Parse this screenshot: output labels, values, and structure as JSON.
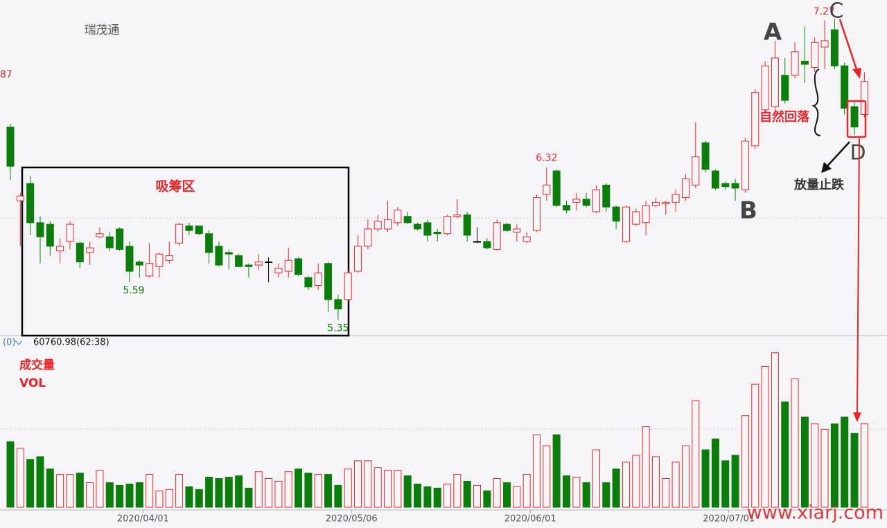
{
  "chart_data": [
    {
      "type": "candlestick",
      "title": "瑞茂通",
      "categories": [
        null,
        null,
        null,
        null,
        null,
        null,
        null,
        null,
        null,
        null,
        null,
        null,
        null,
        "2020/04/01",
        null,
        null,
        null,
        null,
        null,
        null,
        null,
        null,
        null,
        null,
        null,
        null,
        null,
        null,
        null,
        null,
        null,
        null,
        null,
        null,
        "2020/05/06",
        null,
        null,
        null,
        null,
        null,
        null,
        null,
        null,
        null,
        null,
        null,
        null,
        null,
        null,
        null,
        null,
        null,
        "2020/06/01",
        null,
        null,
        null,
        null,
        null,
        null,
        null,
        null,
        null,
        null,
        null,
        null,
        null,
        null,
        null,
        null,
        null,
        null,
        null,
        "2020/07/01",
        null,
        null,
        null,
        null,
        null,
        null,
        null,
        null,
        null,
        null,
        null,
        null,
        null,
        null
      ],
      "open": [
        6.58,
        6.11,
        6.22,
        5.97,
        5.96,
        5.79,
        5.85,
        5.84,
        5.78,
        5.88,
        5.88,
        5.93,
        5.82,
        5.72,
        5.63,
        5.69,
        5.73,
        5.84,
        5.95,
        5.95,
        5.9,
        5.82,
        5.78,
        5.76,
        5.7,
        5.7,
        5.72,
        5.65,
        5.66,
        5.74,
        5.62,
        5.57,
        5.71,
        5.48,
        5.48,
        5.66,
        5.82,
        5.93,
        5.93,
        5.97,
        6.01,
        5.96,
        5.97,
        5.91,
        5.9,
        6.01,
        6.02,
        5.85,
        5.85,
        5.8,
        5.96,
        5.91,
        5.85,
        5.92,
        6.15,
        6.3,
        6.08,
        6.1,
        6.12,
        6.04,
        6.21,
        6.07,
        5.85,
        5.96,
        5.97,
        6.08,
        6.09,
        6.1,
        6.13,
        6.21,
        6.48,
        6.3,
        6.22,
        6.22,
        6.18,
        6.46,
        6.69,
        6.71,
        6.91,
        6.91,
        7.0,
        6.96,
        7.09,
        7.2,
        6.97,
        6.71,
        6.66
      ],
      "high": [
        6.6,
        6.16,
        6.27,
        6.01,
        5.98,
        5.87,
        5.98,
        5.85,
        5.85,
        5.94,
        5.91,
        5.94,
        5.85,
        5.73,
        5.84,
        5.78,
        5.85,
        5.97,
        5.97,
        5.95,
        5.92,
        5.85,
        5.8,
        5.77,
        5.71,
        5.77,
        5.75,
        5.71,
        5.81,
        5.75,
        5.63,
        5.71,
        5.72,
        5.51,
        5.68,
        5.89,
        5.99,
        6.02,
        6.11,
        6.07,
        6.04,
        5.97,
        5.99,
        5.93,
        6.02,
        6.12,
        6.04,
        5.94,
        5.87,
        5.99,
        5.97,
        5.96,
        5.91,
        6.15,
        6.32,
        6.31,
        6.11,
        6.16,
        6.16,
        6.21,
        6.22,
        6.08,
        6.08,
        6.06,
        6.11,
        6.13,
        6.11,
        6.18,
        6.28,
        6.61,
        6.49,
        6.31,
        6.23,
        6.25,
        6.51,
        6.82,
        7.0,
        7.13,
        7.02,
        7.12,
        7.22,
        7.15,
        7.26,
        7.27,
        6.99,
        6.75,
        6.93
      ],
      "low": [
        6.24,
        5.82,
        5.89,
        5.71,
        5.76,
        5.71,
        5.8,
        5.68,
        5.7,
        5.87,
        5.79,
        5.79,
        5.59,
        5.62,
        5.62,
        5.62,
        5.71,
        5.82,
        5.89,
        5.89,
        5.71,
        5.69,
        5.67,
        5.69,
        5.62,
        5.67,
        5.59,
        5.62,
        5.62,
        5.63,
        5.54,
        5.54,
        5.4,
        5.35,
        5.47,
        5.65,
        5.8,
        5.91,
        5.91,
        5.95,
        5.96,
        5.92,
        5.85,
        5.85,
        5.89,
        6.0,
        5.85,
        5.84,
        5.8,
        5.79,
        5.91,
        5.85,
        5.84,
        5.91,
        6.11,
        6.07,
        6.03,
        6.05,
        6.07,
        6.03,
        6.04,
        5.93,
        5.84,
        5.95,
        5.89,
        6.07,
        6.02,
        6.04,
        6.11,
        6.19,
        6.29,
        6.18,
        6.18,
        6.11,
        6.16,
        6.44,
        6.66,
        6.69,
        6.73,
        6.89,
        6.86,
        6.93,
        6.95,
        6.95,
        6.66,
        6.53,
        6.64
      ],
      "close": [
        6.33,
        6.14,
        5.97,
        5.88,
        5.82,
        5.82,
        5.96,
        5.72,
        5.81,
        5.9,
        5.81,
        5.8,
        5.66,
        5.7,
        5.71,
        5.77,
        5.76,
        5.96,
        5.92,
        5.9,
        5.78,
        5.7,
        5.77,
        5.69,
        5.69,
        5.72,
        5.72,
        5.68,
        5.73,
        5.64,
        5.56,
        5.65,
        5.48,
        5.42,
        5.65,
        5.82,
        5.93,
        5.98,
        5.99,
        6.05,
        5.97,
        5.93,
        5.89,
        5.9,
        6.01,
        6.02,
        5.89,
        5.85,
        5.81,
        5.97,
        5.92,
        5.93,
        5.88,
        6.13,
        6.21,
        6.08,
        6.05,
        6.12,
        6.08,
        6.18,
        6.07,
        5.98,
        6.07,
        6.04,
        6.08,
        6.1,
        6.1,
        6.15,
        6.25,
        6.39,
        6.31,
        6.19,
        6.2,
        6.19,
        6.49,
        6.8,
        6.97,
        7.02,
        6.75,
        7.06,
        6.98,
        7.12,
        7.13,
        6.97,
        6.7,
        6.58,
        6.87
      ],
      "up_color": "#e8262a",
      "down_color": "#0a7d0a",
      "flat_color": "#000000",
      "ylim": [
        5.25,
        7.39
      ],
      "annotations": [
        "吸筹区",
        "自然回落",
        "放量止跌",
        "A",
        "B",
        "C",
        "D",
        "87"
      ]
    },
    {
      "type": "bar",
      "title": "成交量",
      "subtitle": "VOL",
      "indicator": "(0)",
      "header": "60760.98(62:38)",
      "values": [
        48000,
        43000,
        35000,
        37000,
        28000,
        24000,
        24000,
        25000,
        18000,
        27000,
        18000,
        16000,
        17000,
        18000,
        24000,
        12000,
        13000,
        24000,
        15000,
        13000,
        22000,
        21000,
        22000,
        23000,
        14000,
        26000,
        21000,
        19000,
        26000,
        28000,
        25000,
        24000,
        24000,
        16000,
        28000,
        34000,
        34000,
        29000,
        27000,
        27000,
        23000,
        17000,
        15000,
        14000,
        17000,
        24000,
        19000,
        16000,
        12000,
        21000,
        18000,
        15000,
        24000,
        53000,
        45000,
        53000,
        23000,
        22000,
        18000,
        42000,
        18000,
        28000,
        33000,
        38000,
        59000,
        37000,
        21000,
        33000,
        45000,
        78000,
        42000,
        50000,
        34000,
        38000,
        67000,
        90000,
        103000,
        113000,
        77000,
        94000,
        66000,
        61000,
        57000,
        61000,
        66000,
        54000,
        61000
      ],
      "ylim": [
        0,
        123000
      ]
    }
  ],
  "watermark": "www.xiarj.com"
}
